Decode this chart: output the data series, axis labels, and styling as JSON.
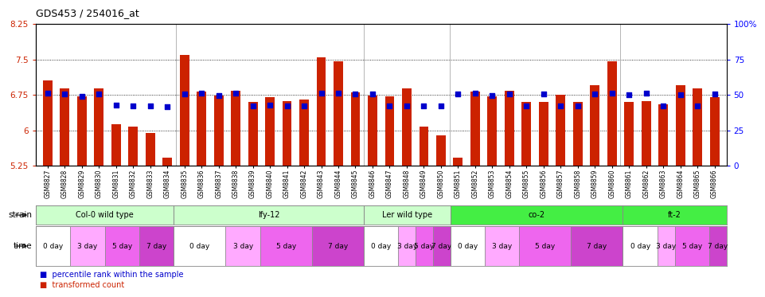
{
  "title": "GDS453 / 254016_at",
  "samples": [
    "GSM8827",
    "GSM8828",
    "GSM8829",
    "GSM8830",
    "GSM8831",
    "GSM8832",
    "GSM8833",
    "GSM8834",
    "GSM8835",
    "GSM8836",
    "GSM8837",
    "GSM8838",
    "GSM8839",
    "GSM8840",
    "GSM8841",
    "GSM8842",
    "GSM8843",
    "GSM8844",
    "GSM8845",
    "GSM8846",
    "GSM8847",
    "GSM8848",
    "GSM8849",
    "GSM8850",
    "GSM8851",
    "GSM8852",
    "GSM8853",
    "GSM8854",
    "GSM8855",
    "GSM8856",
    "GSM8857",
    "GSM8858",
    "GSM8859",
    "GSM8860",
    "GSM8861",
    "GSM8862",
    "GSM8863",
    "GSM8864",
    "GSM8865",
    "GSM8866"
  ],
  "bar_values": [
    7.05,
    6.88,
    6.72,
    6.88,
    6.12,
    6.07,
    5.95,
    5.42,
    7.6,
    6.82,
    6.74,
    6.83,
    6.6,
    6.7,
    6.62,
    6.65,
    7.55,
    7.45,
    6.8,
    6.73,
    6.72,
    6.88,
    6.08,
    5.9,
    5.42,
    6.82,
    6.72,
    6.83,
    6.6,
    6.6,
    6.75,
    6.6,
    6.95,
    7.45,
    6.6,
    6.62,
    6.55,
    6.95,
    6.88,
    6.7
  ],
  "percentile_values": [
    6.78,
    6.76,
    6.72,
    6.77,
    6.54,
    6.52,
    6.52,
    6.5,
    6.77,
    6.78,
    6.74,
    6.78,
    6.52,
    6.54,
    6.52,
    6.52,
    6.78,
    6.78,
    6.76,
    6.76,
    6.52,
    6.52,
    6.52,
    6.52,
    6.76,
    6.78,
    6.74,
    6.76,
    6.52,
    6.76,
    6.52,
    6.52,
    6.76,
    6.78,
    6.75,
    6.78,
    6.52,
    6.75,
    6.52,
    6.76
  ],
  "baseline": 5.25,
  "ylim_left": [
    5.25,
    8.25
  ],
  "ylim_right": [
    0,
    100
  ],
  "yticks_left": [
    5.25,
    6.0,
    6.75,
    7.5,
    8.25
  ],
  "ytick_labels_left": [
    "5.25",
    "6",
    "6.75",
    "7.5",
    "8.25"
  ],
  "yticks_right": [
    0,
    25,
    50,
    75,
    100
  ],
  "ytick_labels_right": [
    "0",
    "25",
    "50",
    "75",
    "100%"
  ],
  "hlines": [
    6.0,
    6.75,
    7.5
  ],
  "bar_color": "#cc2200",
  "dot_color": "#0000cc",
  "strain_boundaries": [
    0,
    8,
    19,
    24,
    34,
    40
  ],
  "strains": [
    {
      "label": "Col-0 wild type",
      "start": 0,
      "end": 8,
      "color": "#ccffcc"
    },
    {
      "label": "lfy-12",
      "start": 8,
      "end": 19,
      "color": "#ccffcc"
    },
    {
      "label": "Ler wild type",
      "start": 19,
      "end": 24,
      "color": "#ccffcc"
    },
    {
      "label": "co-2",
      "start": 24,
      "end": 34,
      "color": "#44ee44"
    },
    {
      "label": "ft-2",
      "start": 34,
      "end": 40,
      "color": "#44ee44"
    }
  ],
  "time_groups": [
    {
      "label": "0 day",
      "start": 0,
      "end": 2,
      "color": "#ffffff"
    },
    {
      "label": "3 day",
      "start": 2,
      "end": 4,
      "color": "#ffaaff"
    },
    {
      "label": "5 day",
      "start": 4,
      "end": 6,
      "color": "#ee66ee"
    },
    {
      "label": "7 day",
      "start": 6,
      "end": 8,
      "color": "#cc44cc"
    },
    {
      "label": "0 day",
      "start": 8,
      "end": 11,
      "color": "#ffffff"
    },
    {
      "label": "3 day",
      "start": 11,
      "end": 13,
      "color": "#ffaaff"
    },
    {
      "label": "5 day",
      "start": 13,
      "end": 16,
      "color": "#ee66ee"
    },
    {
      "label": "7 day",
      "start": 16,
      "end": 19,
      "color": "#cc44cc"
    },
    {
      "label": "0 day",
      "start": 19,
      "end": 21,
      "color": "#ffffff"
    },
    {
      "label": "3 day",
      "start": 21,
      "end": 22,
      "color": "#ffaaff"
    },
    {
      "label": "5 day",
      "start": 22,
      "end": 23,
      "color": "#ee66ee"
    },
    {
      "label": "7 day",
      "start": 23,
      "end": 24,
      "color": "#cc44cc"
    },
    {
      "label": "0 day",
      "start": 24,
      "end": 26,
      "color": "#ffffff"
    },
    {
      "label": "3 day",
      "start": 26,
      "end": 28,
      "color": "#ffaaff"
    },
    {
      "label": "5 day",
      "start": 28,
      "end": 31,
      "color": "#ee66ee"
    },
    {
      "label": "7 day",
      "start": 31,
      "end": 34,
      "color": "#cc44cc"
    },
    {
      "label": "0 day",
      "start": 34,
      "end": 36,
      "color": "#ffffff"
    },
    {
      "label": "3 day",
      "start": 36,
      "end": 37,
      "color": "#ffaaff"
    },
    {
      "label": "5 day",
      "start": 37,
      "end": 39,
      "color": "#ee66ee"
    },
    {
      "label": "7 day",
      "start": 39,
      "end": 40,
      "color": "#cc44cc"
    }
  ],
  "legend_items": [
    {
      "label": "transformed count",
      "color": "#cc2200"
    },
    {
      "label": "percentile rank within the sample",
      "color": "#0000cc"
    }
  ]
}
